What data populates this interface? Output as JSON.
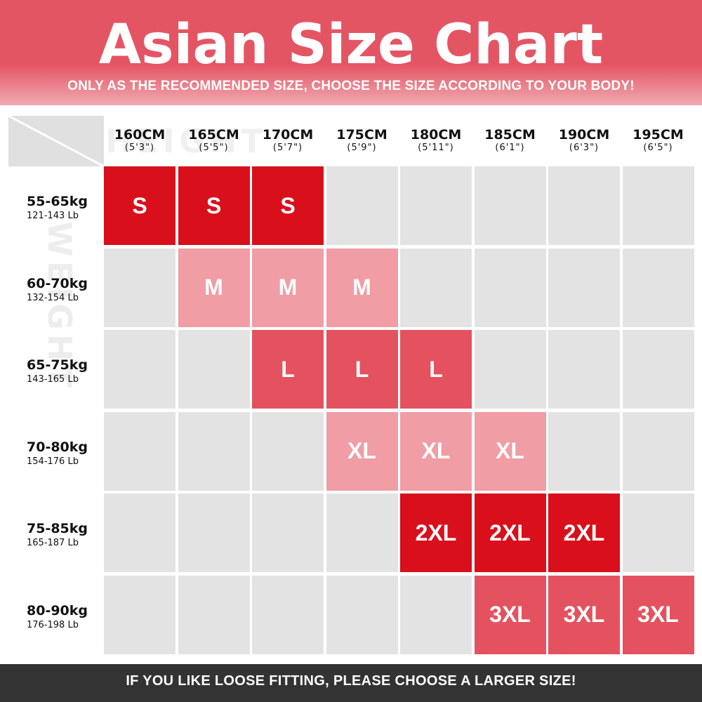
{
  "header": {
    "title": "Asian Size Chart",
    "subtitle": "ONLY AS THE RECOMMENDED SIZE, CHOOSE THE SIZE ACCORDING TO YOUR BODY!"
  },
  "watermarks": {
    "height": "HEIGHT",
    "weight": "WEIGHT"
  },
  "columns": [
    {
      "cm": "160CM",
      "ft": "(5'3\")"
    },
    {
      "cm": "165CM",
      "ft": "(5'5\")"
    },
    {
      "cm": "170CM",
      "ft": "(5'7\")"
    },
    {
      "cm": "175CM",
      "ft": "(5'9\")"
    },
    {
      "cm": "180CM",
      "ft": "(5'11\")"
    },
    {
      "cm": "185CM",
      "ft": "(6'1\")"
    },
    {
      "cm": "190CM",
      "ft": "(6'3\")"
    },
    {
      "cm": "195CM",
      "ft": "(6'5\")"
    }
  ],
  "rows": [
    {
      "kg": "55-65kg",
      "lb": "121-143 Lb",
      "cells": [
        "S",
        "S",
        "S",
        "",
        "",
        "",
        "",
        ""
      ]
    },
    {
      "kg": "60-70kg",
      "lb": "132-154 Lb",
      "cells": [
        "",
        "M",
        "M",
        "M",
        "",
        "",
        "",
        ""
      ]
    },
    {
      "kg": "65-75kg",
      "lb": "143-165 Lb",
      "cells": [
        "",
        "",
        "L",
        "L",
        "L",
        "",
        "",
        ""
      ]
    },
    {
      "kg": "70-80kg",
      "lb": "154-176 Lb",
      "cells": [
        "",
        "",
        "",
        "XL",
        "XL",
        "XL",
        "",
        ""
      ]
    },
    {
      "kg": "75-85kg",
      "lb": "165-187 Lb",
      "cells": [
        "",
        "",
        "",
        "",
        "2XL",
        "2XL",
        "2XL",
        ""
      ]
    },
    {
      "kg": "80-90kg",
      "lb": "176-198 Lb",
      "cells": [
        "",
        "",
        "",
        "",
        "",
        "3XL",
        "3XL",
        "3XL"
      ]
    }
  ],
  "footer": {
    "text": "IF YOU LIKE LOOSE FITTING, PLEASE CHOOSE A LARGER SIZE!"
  },
  "colors": {
    "header": "#e45564",
    "S": "#d90f1b",
    "M": "#f09da5",
    "L": "#e4525f",
    "XL": "#f09da5",
    "2XL": "#d90f1b",
    "3XL": "#e4525f",
    "empty": "#e3e3e3",
    "footer": "#333333"
  }
}
